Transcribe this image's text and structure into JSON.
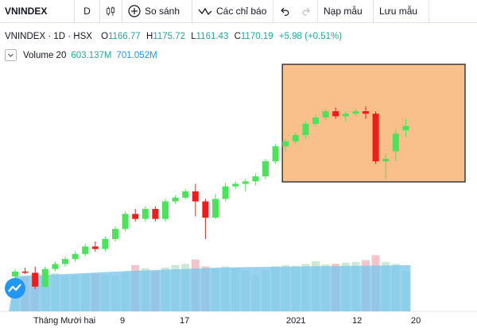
{
  "toolbar": {
    "symbol": "VNINDEX",
    "interval": "D",
    "compare_label": "So sánh",
    "indicators_label": "Các chỉ báo",
    "templates_label": "Nạp mẫu",
    "save_label": "Lưu mẫu"
  },
  "legend": {
    "title": "VNINDEX · 1D · HSX",
    "o_label": "O",
    "o_value": "1166.77",
    "h_label": "H",
    "h_value": "1175.72",
    "l_label": "L",
    "l_value": "1161.43",
    "c_label": "C",
    "c_value": "1170.19",
    "change": "+5.98 (+0.51%)"
  },
  "volume_legend": {
    "name": "Volume 20",
    "value1": "603.137M",
    "value2": "701.052M"
  },
  "x_axis": {
    "labels": [
      "Tháng Mười hai",
      "9",
      "17",
      "2021",
      "12",
      "20"
    ]
  },
  "colors": {
    "up": "#4ce35a",
    "down": "#ef1c1c",
    "highlight_fill": "#f9c08c",
    "highlight_border": "#3a3a3a",
    "volume_area": "#7ec7ec",
    "vol_up": "#c9ead5",
    "vol_down": "#f5c4c9"
  },
  "icons": {
    "candles": "candlestick-icon",
    "compare": "plus-circle-icon",
    "indicators": "indicator-wave-icon",
    "undo": "undo-icon",
    "redo": "redo-icon",
    "logo": "tradingview-logo-icon"
  },
  "chart_data": {
    "type": "candlestick",
    "series_name": "VNINDEX",
    "candles": [
      {
        "o": 1050,
        "h": 1056,
        "l": 1048,
        "c": 1054
      },
      {
        "o": 1054,
        "h": 1057,
        "l": 1052,
        "c": 1053
      },
      {
        "o": 1053,
        "h": 1058,
        "l": 1040,
        "c": 1042
      },
      {
        "o": 1042,
        "h": 1058,
        "l": 1041,
        "c": 1056
      },
      {
        "o": 1056,
        "h": 1062,
        "l": 1054,
        "c": 1060
      },
      {
        "o": 1060,
        "h": 1066,
        "l": 1058,
        "c": 1064
      },
      {
        "o": 1064,
        "h": 1070,
        "l": 1062,
        "c": 1068
      },
      {
        "o": 1068,
        "h": 1076,
        "l": 1066,
        "c": 1074
      },
      {
        "o": 1074,
        "h": 1078,
        "l": 1070,
        "c": 1072
      },
      {
        "o": 1072,
        "h": 1082,
        "l": 1070,
        "c": 1080
      },
      {
        "o": 1080,
        "h": 1090,
        "l": 1078,
        "c": 1088
      },
      {
        "o": 1088,
        "h": 1102,
        "l": 1086,
        "c": 1100
      },
      {
        "o": 1100,
        "h": 1104,
        "l": 1094,
        "c": 1096
      },
      {
        "o": 1096,
        "h": 1106,
        "l": 1094,
        "c": 1104
      },
      {
        "o": 1104,
        "h": 1106,
        "l": 1094,
        "c": 1096
      },
      {
        "o": 1096,
        "h": 1112,
        "l": 1094,
        "c": 1110
      },
      {
        "o": 1110,
        "h": 1115,
        "l": 1108,
        "c": 1113
      },
      {
        "o": 1113,
        "h": 1120,
        "l": 1112,
        "c": 1118
      },
      {
        "o": 1118,
        "h": 1124,
        "l": 1098,
        "c": 1110
      },
      {
        "o": 1110,
        "h": 1112,
        "l": 1080,
        "c": 1097
      },
      {
        "o": 1097,
        "h": 1116,
        "l": 1096,
        "c": 1112
      },
      {
        "o": 1112,
        "h": 1125,
        "l": 1110,
        "c": 1122
      },
      {
        "o": 1122,
        "h": 1126,
        "l": 1120,
        "c": 1124
      },
      {
        "o": 1124,
        "h": 1128,
        "l": 1118,
        "c": 1126
      },
      {
        "o": 1126,
        "h": 1132,
        "l": 1123,
        "c": 1130
      },
      {
        "o": 1130,
        "h": 1144,
        "l": 1128,
        "c": 1142
      },
      {
        "o": 1142,
        "h": 1156,
        "l": 1140,
        "c": 1154
      },
      {
        "o": 1154,
        "h": 1160,
        "l": 1150,
        "c": 1158
      },
      {
        "o": 1158,
        "h": 1165,
        "l": 1156,
        "c": 1163
      },
      {
        "o": 1163,
        "h": 1174,
        "l": 1160,
        "c": 1172
      },
      {
        "o": 1172,
        "h": 1179,
        "l": 1170,
        "c": 1177
      },
      {
        "o": 1177,
        "h": 1184,
        "l": 1175,
        "c": 1182
      },
      {
        "o": 1182,
        "h": 1185,
        "l": 1176,
        "c": 1178
      },
      {
        "o": 1178,
        "h": 1182,
        "l": 1174,
        "c": 1180
      },
      {
        "o": 1180,
        "h": 1184,
        "l": 1178,
        "c": 1182
      },
      {
        "o": 1182,
        "h": 1186,
        "l": 1176,
        "c": 1180
      },
      {
        "o": 1180,
        "h": 1182,
        "l": 1140,
        "c": 1142
      },
      {
        "o": 1142,
        "h": 1148,
        "l": 1128,
        "c": 1144
      },
      {
        "o": 1150,
        "h": 1168,
        "l": 1142,
        "c": 1164
      },
      {
        "o": 1166.77,
        "h": 1175.72,
        "l": 1161.43,
        "c": 1170.19
      }
    ],
    "volume": [
      {
        "v": 520,
        "up": true
      },
      {
        "v": 560,
        "up": false
      },
      {
        "v": 600,
        "up": false
      },
      {
        "v": 540,
        "up": true
      },
      {
        "v": 610,
        "up": true
      },
      {
        "v": 560,
        "up": true
      },
      {
        "v": 580,
        "up": true
      },
      {
        "v": 590,
        "up": true
      },
      {
        "v": 600,
        "up": false
      },
      {
        "v": 580,
        "up": true
      },
      {
        "v": 570,
        "up": true
      },
      {
        "v": 620,
        "up": true
      },
      {
        "v": 740,
        "up": false
      },
      {
        "v": 690,
        "up": true
      },
      {
        "v": 640,
        "up": false
      },
      {
        "v": 700,
        "up": true
      },
      {
        "v": 740,
        "up": true
      },
      {
        "v": 760,
        "up": true
      },
      {
        "v": 830,
        "up": false
      },
      {
        "v": 720,
        "up": false
      },
      {
        "v": 690,
        "up": true
      },
      {
        "v": 720,
        "up": true
      },
      {
        "v": 700,
        "up": true
      },
      {
        "v": 650,
        "up": true
      },
      {
        "v": 580,
        "up": true
      },
      {
        "v": 660,
        "up": true
      },
      {
        "v": 720,
        "up": true
      },
      {
        "v": 740,
        "up": true
      },
      {
        "v": 730,
        "up": true
      },
      {
        "v": 760,
        "up": true
      },
      {
        "v": 800,
        "up": true
      },
      {
        "v": 750,
        "up": true
      },
      {
        "v": 760,
        "up": false
      },
      {
        "v": 780,
        "up": true
      },
      {
        "v": 790,
        "up": true
      },
      {
        "v": 820,
        "up": false
      },
      {
        "v": 900,
        "up": false
      },
      {
        "v": 790,
        "up": true
      },
      {
        "v": 760,
        "up": true
      },
      {
        "v": 650,
        "up": true
      }
    ],
    "volume_ma": [
      560,
      570,
      578,
      584,
      590,
      598,
      604,
      612,
      620,
      628,
      636,
      644,
      650,
      656,
      662,
      668,
      674,
      680,
      686,
      692,
      698,
      702,
      705,
      708,
      710,
      712,
      714,
      716,
      718,
      720,
      722,
      724,
      726,
      728,
      730,
      732,
      734,
      735,
      736,
      738
    ],
    "highlight_range": {
      "from_index": 27,
      "to_index": 39,
      "price_low": 1140,
      "price_high": 1215
    }
  }
}
